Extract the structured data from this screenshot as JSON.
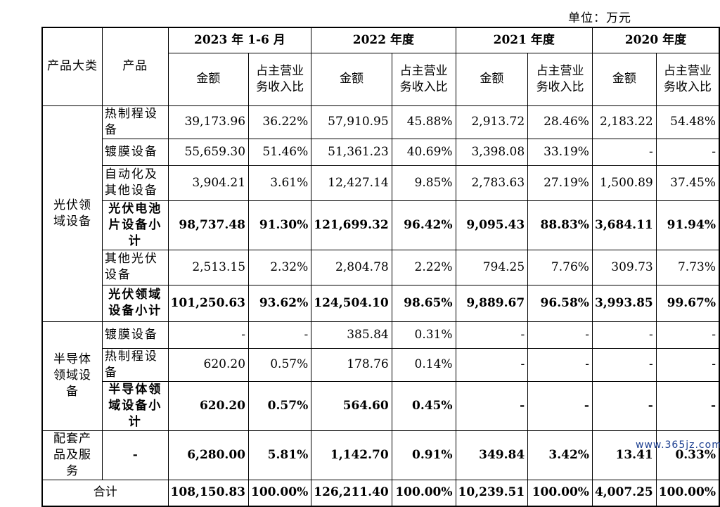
{
  "unit_label": "单位：万元",
  "header": {
    "category": "产品大类",
    "product": "产品",
    "periods": [
      "2023 年 1-6 月",
      "2022 年度",
      "2021 年度",
      "2020 年度"
    ],
    "amount": "金额",
    "ratio": "占主营业务收入比"
  },
  "groups": [
    {
      "category": "光伏领域设备",
      "rows": [
        {
          "product": "热制程设备",
          "bold": false,
          "values": [
            "39,173.96",
            "36.22%",
            "57,910.95",
            "45.88%",
            "2,913.72",
            "28.46%",
            "2,183.22",
            "54.48%"
          ]
        },
        {
          "product": "镀膜设备",
          "bold": false,
          "values": [
            "55,659.30",
            "51.46%",
            "51,361.23",
            "40.69%",
            "3,398.08",
            "33.19%",
            "-",
            "-"
          ]
        },
        {
          "product": "自动化及其他设备",
          "bold": false,
          "values": [
            "3,904.21",
            "3.61%",
            "12,427.14",
            "9.85%",
            "2,783.63",
            "27.19%",
            "1,500.89",
            "37.45%"
          ]
        },
        {
          "product": "光伏电池片设备小计",
          "bold": true,
          "values": [
            "98,737.48",
            "91.30%",
            "121,699.32",
            "96.42%",
            "9,095.43",
            "88.83%",
            "3,684.11",
            "91.94%"
          ]
        },
        {
          "product": "其他光伏设备",
          "bold": false,
          "values": [
            "2,513.15",
            "2.32%",
            "2,804.78",
            "2.22%",
            "794.25",
            "7.76%",
            "309.73",
            "7.73%"
          ]
        },
        {
          "product": "光伏领域设备小计",
          "bold": true,
          "values": [
            "101,250.63",
            "93.62%",
            "124,504.10",
            "98.65%",
            "9,889.67",
            "96.58%",
            "3,993.85",
            "99.67%"
          ]
        }
      ]
    },
    {
      "category": "半导体领域设备",
      "rows": [
        {
          "product": "镀膜设备",
          "bold": false,
          "values": [
            "-",
            "-",
            "385.84",
            "0.31%",
            "-",
            "-",
            "-",
            "-"
          ]
        },
        {
          "product": "热制程设备",
          "bold": false,
          "values": [
            "620.20",
            "0.57%",
            "178.76",
            "0.14%",
            "-",
            "-",
            "-",
            "-"
          ]
        },
        {
          "product": "半导体领域设备小计",
          "bold": true,
          "values": [
            "620.20",
            "0.57%",
            "564.60",
            "0.45%",
            "-",
            "-",
            "-",
            "-"
          ]
        }
      ]
    }
  ],
  "support": {
    "category": "配套产品及服务",
    "product": "-",
    "values": [
      "6,280.00",
      "5.81%",
      "1,142.70",
      "0.91%",
      "349.84",
      "3.42%",
      "13.41",
      "0.33%"
    ]
  },
  "total": {
    "label": "合计",
    "values": [
      "108,150.83",
      "100.00%",
      "126,211.40",
      "100.00%",
      "10,239.51",
      "100.00%",
      "4,007.25",
      "100.00%"
    ]
  },
  "watermark": "www.365jz.com"
}
